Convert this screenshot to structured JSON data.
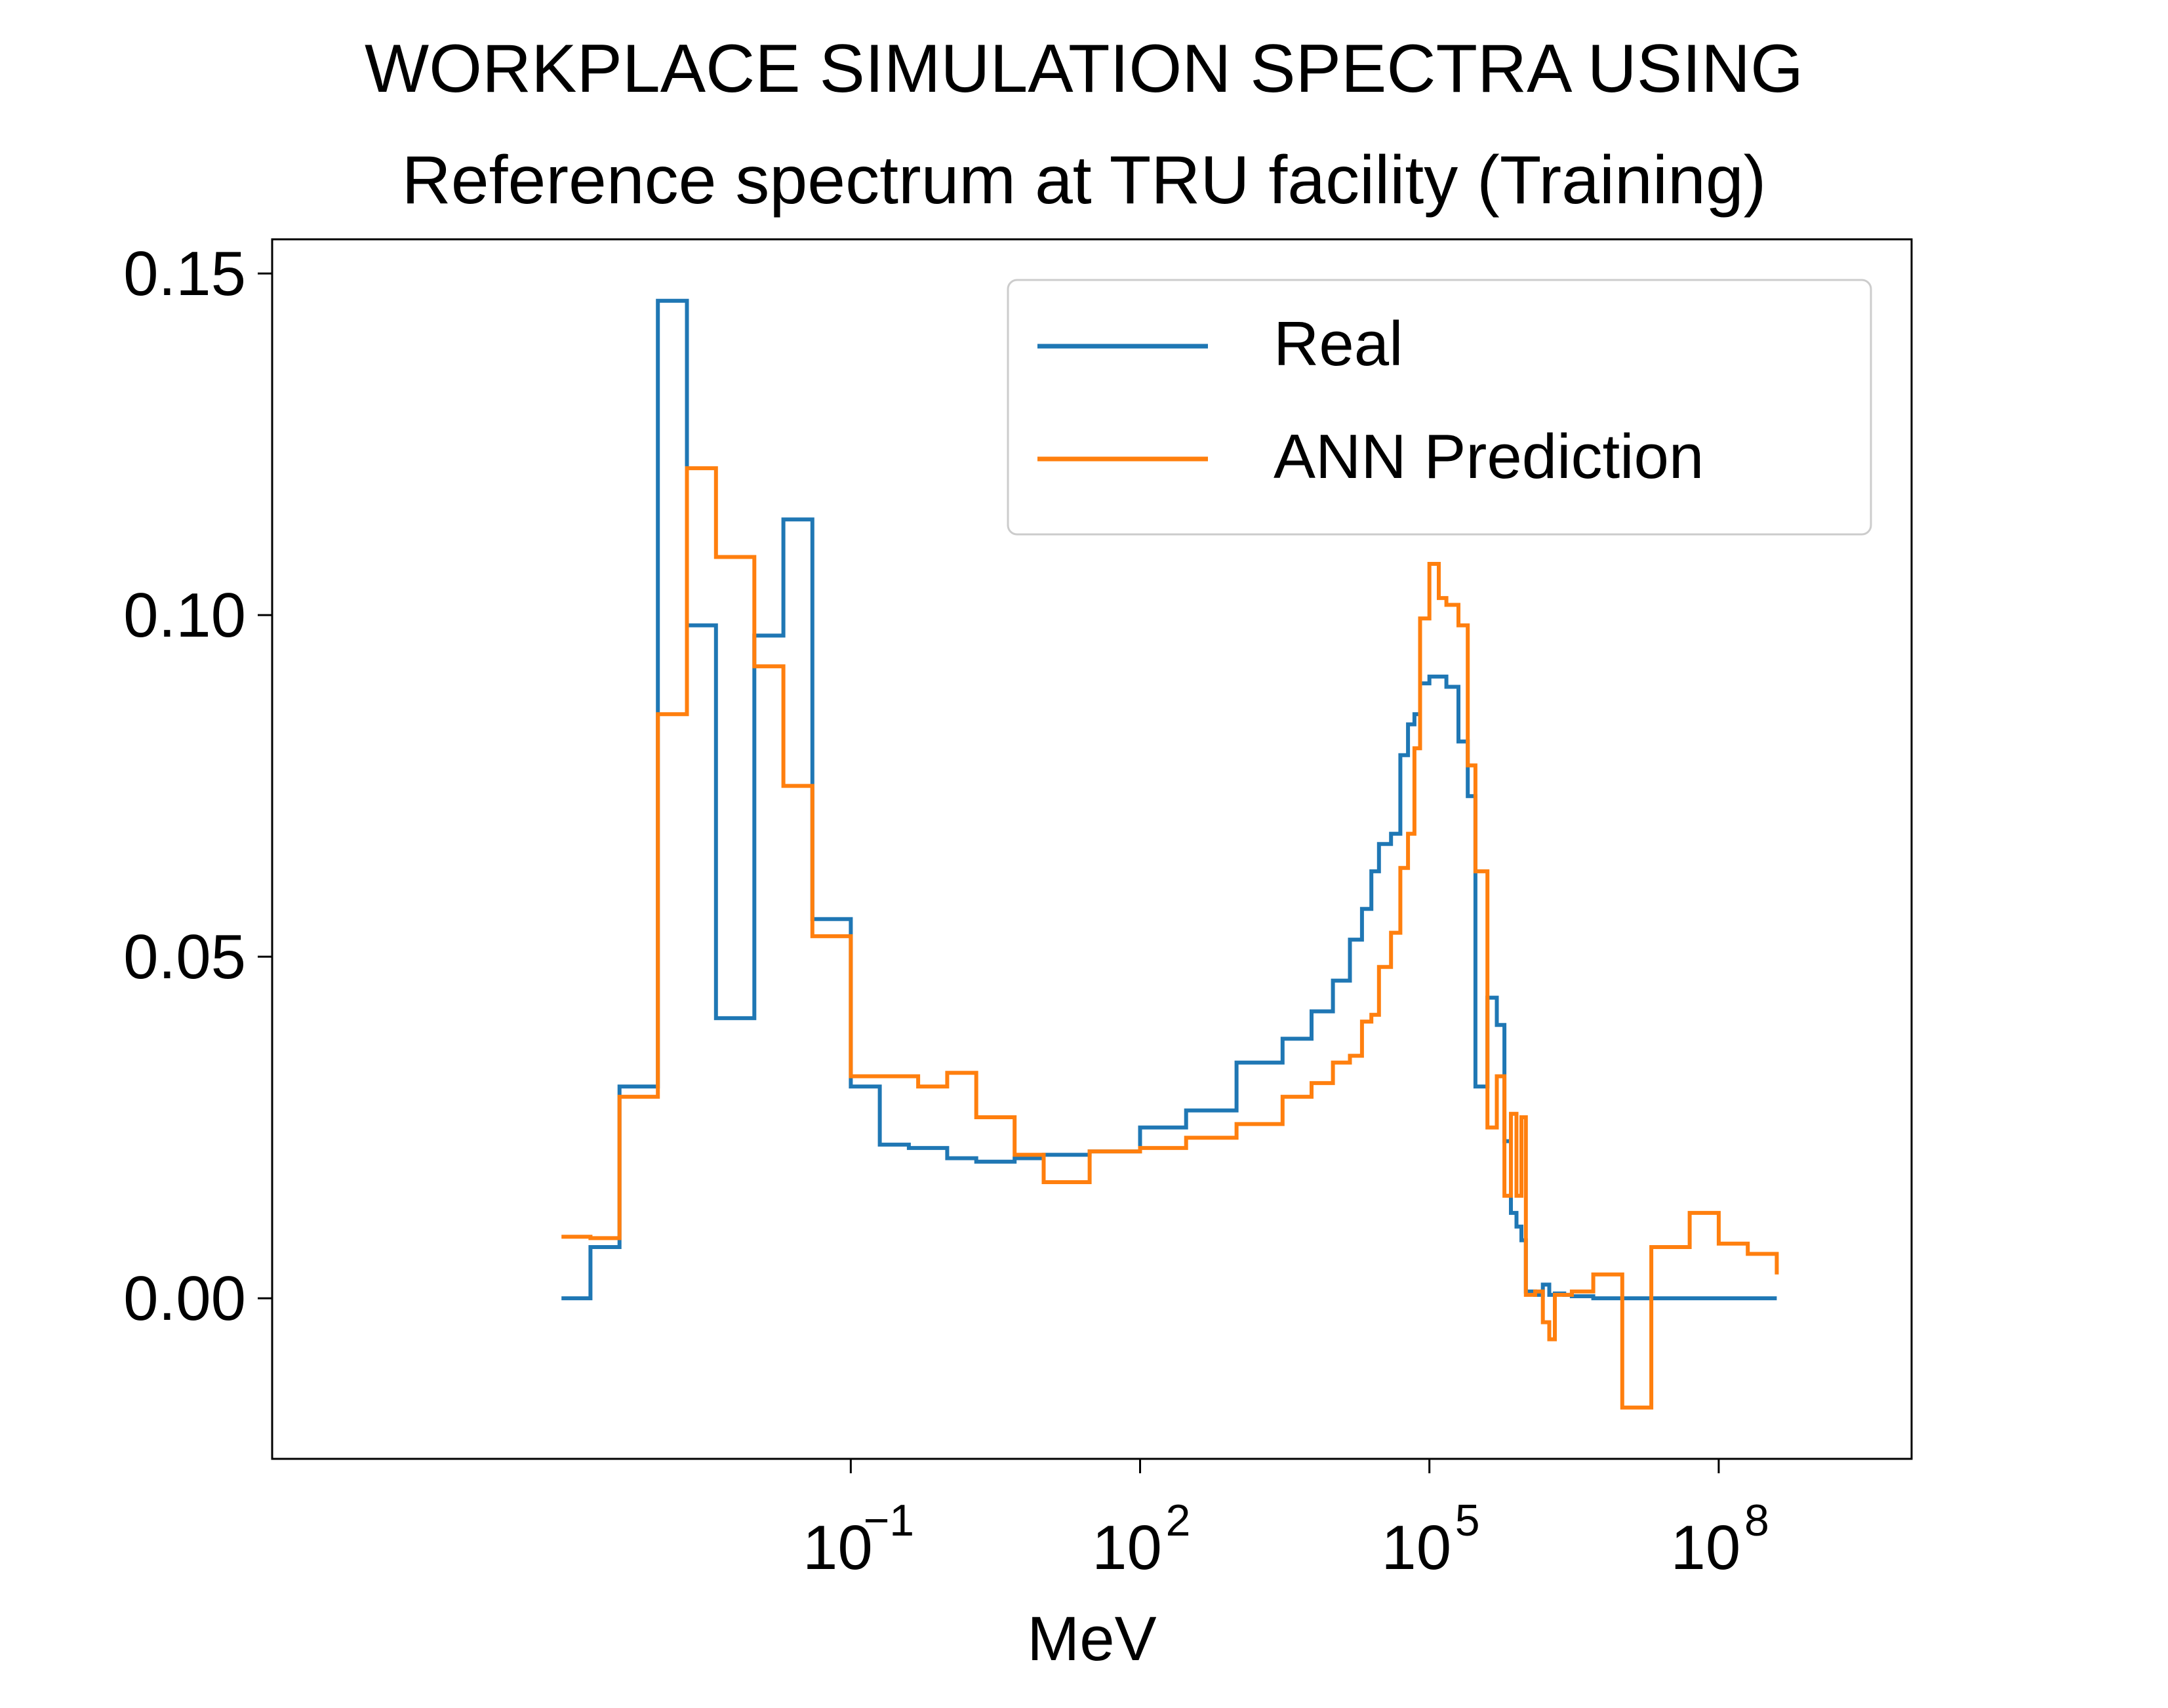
{
  "chart_data": {
    "type": "line",
    "drawstyle": "steps-post",
    "title": "WORKPLACE SIMULATION SPECTRA USING",
    "subtitle": "Reference spectrum at TRU facility (Training)",
    "xlabel": "MeV",
    "ylabel": "",
    "xscale": "log",
    "xlim": [
      1e-07,
      10000000000.0
    ],
    "ylim": [
      -0.0235,
      0.155
    ],
    "grid": false,
    "legend_position": "top-right",
    "x_ticks": [
      {
        "base": "10",
        "exp": "−1",
        "value": 0.1
      },
      {
        "base": "10",
        "exp": "2",
        "value": 100
      },
      {
        "base": "10",
        "exp": "5",
        "value": 100000
      },
      {
        "base": "10",
        "exp": "8",
        "value": 100000000
      }
    ],
    "y_ticks": [
      "0.00",
      "0.05",
      "0.10",
      "0.15"
    ],
    "y_tick_values": [
      0.0,
      0.05,
      0.1,
      0.15
    ],
    "series": [
      {
        "name": "Real",
        "color": "#1f77b4",
        "x": [
          0.0001,
          0.0002,
          0.0004,
          0.001,
          0.002,
          0.004,
          0.01,
          0.02,
          0.04,
          0.1,
          0.2,
          0.4,
          1,
          2,
          5,
          10,
          30,
          100,
          300,
          1000,
          3000,
          6000,
          10000,
          15000,
          20000,
          25000,
          30000,
          40000,
          50000,
          60000,
          70000,
          80000,
          100000,
          125000,
          150000,
          200000,
          250000,
          300000,
          400000,
          500000,
          600000,
          700000,
          800000,
          900000,
          1000000,
          1250000,
          1500000,
          1750000,
          2000000,
          2500000,
          3000000,
          5000000,
          10000000,
          20000000,
          50000000,
          100000000,
          400000000
        ],
        "y": [
          0.0,
          0.0075,
          0.031,
          0.146,
          0.0985,
          0.041,
          0.097,
          0.114,
          0.0555,
          0.031,
          0.0225,
          0.022,
          0.0205,
          0.02,
          0.0205,
          0.021,
          0.0215,
          0.025,
          0.0275,
          0.0345,
          0.038,
          0.042,
          0.0465,
          0.0525,
          0.057,
          0.0625,
          0.0665,
          0.068,
          0.0795,
          0.084,
          0.0855,
          0.09,
          0.091,
          0.091,
          0.0895,
          0.0815,
          0.0735,
          0.031,
          0.044,
          0.04,
          0.023,
          0.0125,
          0.0105,
          0.0085,
          0.001,
          0.0005,
          0.002,
          0.0005,
          0.0007,
          0.0005,
          0.0003,
          0.0,
          0.0,
          0.0,
          0.0,
          0.0,
          0.0
        ]
      },
      {
        "name": "ANN Prediction",
        "color": "#ff7f0e",
        "x": [
          0.0001,
          0.0002,
          0.0004,
          0.001,
          0.002,
          0.004,
          0.01,
          0.02,
          0.04,
          0.1,
          0.5,
          1,
          2,
          5,
          10,
          30,
          100,
          300,
          1000,
          3000,
          6000,
          10000,
          15000,
          20000,
          25000,
          30000,
          40000,
          50000,
          60000,
          70000,
          80000,
          100000,
          125000,
          150000,
          200000,
          250000,
          300000,
          400000,
          500000,
          600000,
          700000,
          800000,
          900000,
          1000000,
          1250000,
          1500000,
          1750000,
          2000000,
          3000000,
          5000000,
          10000000,
          20000000,
          50000000,
          100000000,
          200000000,
          400000000
        ],
        "y": [
          0.009,
          0.0088,
          0.0295,
          0.0855,
          0.1215,
          0.1085,
          0.0925,
          0.075,
          0.053,
          0.0325,
          0.031,
          0.033,
          0.0265,
          0.021,
          0.017,
          0.0215,
          0.022,
          0.0235,
          0.0255,
          0.0295,
          0.0315,
          0.0345,
          0.0355,
          0.0405,
          0.0415,
          0.0485,
          0.0535,
          0.063,
          0.068,
          0.0805,
          0.0995,
          0.1075,
          0.1025,
          0.1015,
          0.0985,
          0.078,
          0.0625,
          0.025,
          0.0325,
          0.015,
          0.027,
          0.015,
          0.0265,
          0.0005,
          0.001,
          -0.0035,
          -0.006,
          0.0005,
          0.001,
          0.0035,
          -0.016,
          0.0075,
          0.0125,
          0.008,
          0.0065,
          0.0035
        ]
      }
    ]
  }
}
